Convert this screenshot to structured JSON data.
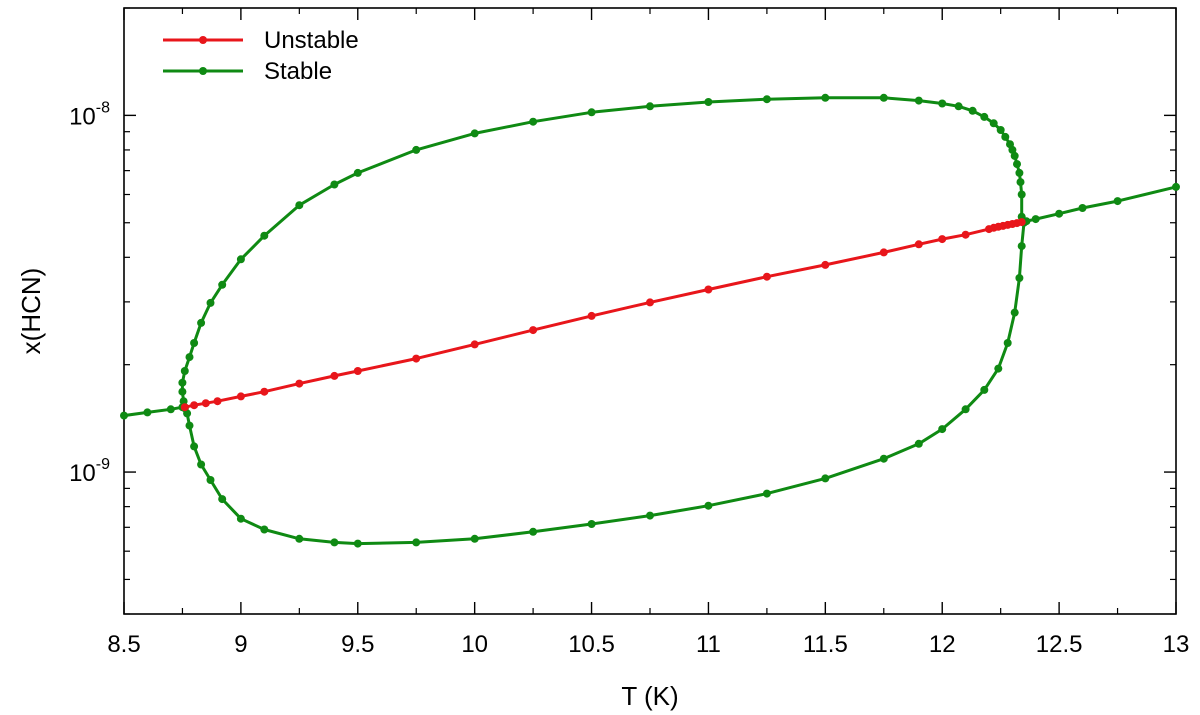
{
  "chart_data": {
    "type": "line",
    "title": "",
    "xlabel": "T (K)",
    "ylabel": "x(HCN)",
    "xlim": [
      8.5,
      13
    ],
    "ylim": [
      4e-10,
      2e-08
    ],
    "yscale": "log",
    "grid": false,
    "legend_position": "top-left",
    "x_ticks": [
      {
        "value": 8.5,
        "label": "8.5"
      },
      {
        "value": 9,
        "label": "9"
      },
      {
        "value": 9.5,
        "label": "9.5"
      },
      {
        "value": 10,
        "label": "10"
      },
      {
        "value": 10.5,
        "label": "10.5"
      },
      {
        "value": 11,
        "label": "11"
      },
      {
        "value": 11.5,
        "label": "11.5"
      },
      {
        "value": 12,
        "label": "12"
      },
      {
        "value": 12.5,
        "label": "12.5"
      },
      {
        "value": 13,
        "label": "13"
      }
    ],
    "y_ticks": [
      {
        "value": 1e-09,
        "base": "10",
        "exp": "-9"
      },
      {
        "value": 1e-08,
        "base": "10",
        "exp": "-8"
      }
    ],
    "series": [
      {
        "name": "Unstable",
        "color": "#e8161b",
        "x": [
          8.76,
          8.8,
          8.85,
          8.9,
          9.0,
          9.1,
          9.25,
          9.4,
          9.5,
          9.75,
          10.0,
          10.25,
          10.5,
          10.75,
          11.0,
          11.25,
          11.5,
          11.75,
          11.9,
          12.0,
          12.1,
          12.2,
          12.22,
          12.24,
          12.26,
          12.28,
          12.3,
          12.32,
          12.34
        ],
        "y": [
          1.52e-09,
          1.54e-09,
          1.56e-09,
          1.58e-09,
          1.63e-09,
          1.68e-09,
          1.77e-09,
          1.86e-09,
          1.92e-09,
          2.08e-09,
          2.28e-09,
          2.5e-09,
          2.74e-09,
          2.99e-09,
          3.25e-09,
          3.53e-09,
          3.81e-09,
          4.13e-09,
          4.35e-09,
          4.5e-09,
          4.63e-09,
          4.8e-09,
          4.84e-09,
          4.87e-09,
          4.9e-09,
          4.93e-09,
          4.96e-09,
          4.99e-09,
          5.02e-09
        ]
      },
      {
        "name": "Stable",
        "color": "#0f8a13",
        "x": [
          8.5,
          8.6,
          8.7,
          8.75,
          8.76,
          8.77,
          8.78,
          8.8,
          8.83,
          8.87,
          8.92,
          9.0,
          9.1,
          9.25,
          9.4,
          9.5,
          9.75,
          10.0,
          10.25,
          10.5,
          10.75,
          11.0,
          11.25,
          11.5,
          11.75,
          11.9,
          12.0,
          12.1,
          12.18,
          12.24,
          12.28,
          12.31,
          12.33,
          12.34,
          12.35,
          12.36,
          12.4,
          12.5,
          12.6,
          12.75,
          13.0,
          null,
          8.76,
          8.755,
          8.75,
          8.75,
          8.76,
          8.78,
          8.8,
          8.83,
          8.87,
          8.92,
          9.0,
          9.1,
          9.25,
          9.4,
          9.5,
          9.75,
          10.0,
          10.25,
          10.5,
          10.75,
          11.0,
          11.25,
          11.5,
          11.75,
          11.9,
          12.0,
          12.07,
          12.13,
          12.18,
          12.22,
          12.25,
          12.27,
          12.29,
          12.3,
          12.31,
          12.32,
          12.33,
          12.335,
          12.34,
          12.34
        ],
        "y": [
          1.44e-09,
          1.47e-09,
          1.5e-09,
          1.52e-09,
          1.51e-09,
          1.46e-09,
          1.35e-09,
          1.18e-09,
          1.05e-09,
          9.5e-10,
          8.4e-10,
          7.4e-10,
          6.9e-10,
          6.5e-10,
          6.35e-10,
          6.3e-10,
          6.35e-10,
          6.5e-10,
          6.8e-10,
          7.15e-10,
          7.55e-10,
          8.05e-10,
          8.7e-10,
          9.6e-10,
          1.09e-09,
          1.2e-09,
          1.32e-09,
          1.5e-09,
          1.7e-09,
          1.95e-09,
          2.3e-09,
          2.8e-09,
          3.5e-09,
          4.3e-09,
          5e-09,
          5.05e-09,
          5.12e-09,
          5.3e-09,
          5.5e-09,
          5.75e-09,
          6.3e-09,
          null,
          1.52e-09,
          1.58e-09,
          1.68e-09,
          1.78e-09,
          1.92e-09,
          2.1e-09,
          2.3e-09,
          2.62e-09,
          2.98e-09,
          3.35e-09,
          3.95e-09,
          4.6e-09,
          5.6e-09,
          6.4e-09,
          6.9e-09,
          8e-09,
          8.9e-09,
          9.6e-09,
          1.02e-08,
          1.06e-08,
          1.09e-08,
          1.11e-08,
          1.12e-08,
          1.12e-08,
          1.1e-08,
          1.08e-08,
          1.06e-08,
          1.03e-08,
          9.9e-09,
          9.5e-09,
          9.1e-09,
          8.7e-09,
          8.3e-09,
          8e-09,
          7.7e-09,
          7.3e-09,
          6.9e-09,
          6.5e-09,
          6e-09,
          5.2e-09
        ]
      }
    ]
  }
}
